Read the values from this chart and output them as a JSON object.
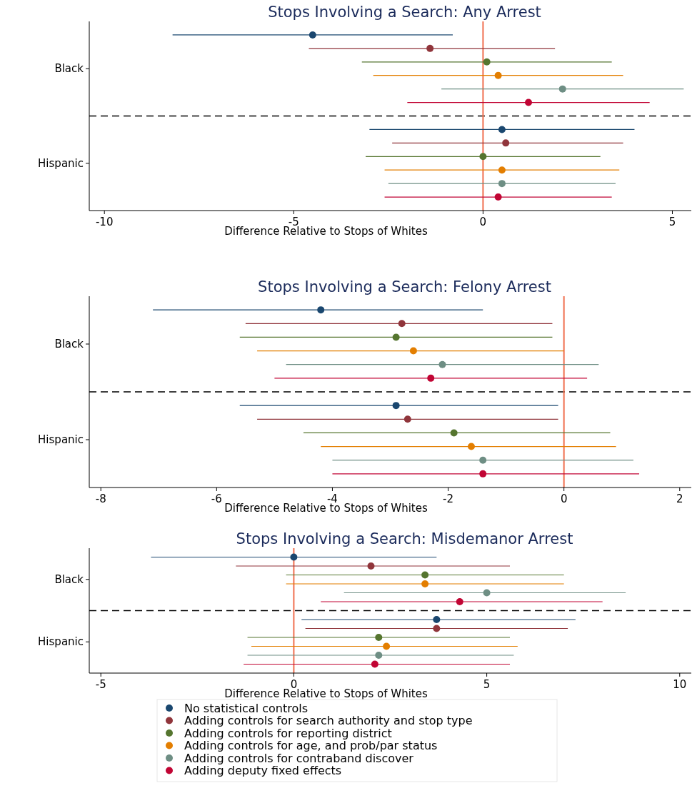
{
  "chart_data": [
    {
      "type": "scatter",
      "orientation": "horizontal",
      "title": "Stops Involving a Search: Any Arrest",
      "xlabel": "Difference Relative to Stops of Whites",
      "categories": [
        "Black",
        "Hispanic"
      ],
      "xlim": [
        -10.4,
        5.5
      ],
      "xticks": [
        -10,
        -5,
        0,
        5
      ],
      "marker": "circle",
      "ref_lines": [
        {
          "axis": "x",
          "value": 0,
          "color": "#f07050"
        }
      ],
      "series": [
        {
          "color": "#1a476f",
          "values": [
            -4.5,
            0.5
          ],
          "errors": [
            [
              -8.2,
              -0.8
            ],
            [
              -3.0,
              4.0
            ]
          ]
        },
        {
          "color": "#90353b",
          "values": [
            -1.4,
            0.6
          ],
          "errors": [
            [
              -4.6,
              1.9
            ],
            [
              -2.4,
              3.7
            ]
          ]
        },
        {
          "color": "#55752f",
          "values": [
            0.1,
            0.0
          ],
          "errors": [
            [
              -3.2,
              3.4
            ],
            [
              -3.1,
              3.1
            ]
          ]
        },
        {
          "color": "#e37e00",
          "values": [
            0.4,
            0.5
          ],
          "errors": [
            [
              -2.9,
              3.7
            ],
            [
              -2.6,
              3.6
            ]
          ]
        },
        {
          "color": "#6e8e84",
          "values": [
            2.1,
            0.5
          ],
          "errors": [
            [
              -1.1,
              5.3
            ],
            [
              -2.5,
              3.5
            ]
          ]
        },
        {
          "color": "#c10534",
          "values": [
            1.2,
            0.4
          ],
          "errors": [
            [
              -2.0,
              4.4
            ],
            [
              -2.6,
              3.4
            ]
          ]
        }
      ]
    },
    {
      "type": "scatter",
      "orientation": "horizontal",
      "title": "Stops Involving a Search: Felony Arrest",
      "xlabel": "Difference Relative to Stops of Whites",
      "categories": [
        "Black",
        "Hispanic"
      ],
      "xlim": [
        -8.2,
        2.2
      ],
      "xticks": [
        -8,
        -6,
        -4,
        -2,
        0,
        2
      ],
      "marker": "circle",
      "ref_lines": [
        {
          "axis": "x",
          "value": 0,
          "color": "#f07050"
        }
      ],
      "series": [
        {
          "color": "#1a476f",
          "values": [
            -4.2,
            -2.9
          ],
          "errors": [
            [
              -7.1,
              -1.4
            ],
            [
              -5.6,
              -0.1
            ]
          ]
        },
        {
          "color": "#90353b",
          "values": [
            -2.8,
            -2.7
          ],
          "errors": [
            [
              -5.5,
              -0.2
            ],
            [
              -5.3,
              -0.1
            ]
          ]
        },
        {
          "color": "#55752f",
          "values": [
            -2.9,
            -1.9
          ],
          "errors": [
            [
              -5.6,
              -0.2
            ],
            [
              -4.5,
              0.8
            ]
          ]
        },
        {
          "color": "#e37e00",
          "values": [
            -2.6,
            -1.6
          ],
          "errors": [
            [
              -5.3,
              0.0
            ],
            [
              -4.2,
              0.9
            ]
          ]
        },
        {
          "color": "#6e8e84",
          "values": [
            -2.1,
            -1.4
          ],
          "errors": [
            [
              -4.8,
              0.6
            ],
            [
              -4.0,
              1.2
            ]
          ]
        },
        {
          "color": "#c10534",
          "values": [
            -2.3,
            -1.4
          ],
          "errors": [
            [
              -5.0,
              0.4
            ],
            [
              -4.0,
              1.3
            ]
          ]
        }
      ]
    },
    {
      "type": "scatter",
      "orientation": "horizontal",
      "title": "Stops Involving a Search: Misdemanor Arrest",
      "xlabel": "Difference Relative to Stops of Whites",
      "categories": [
        "Black",
        "Hispanic"
      ],
      "xlim": [
        -5.3,
        10.3
      ],
      "xticks": [
        -5,
        0,
        5,
        10
      ],
      "marker": "circle",
      "legend": "bottom",
      "ref_lines": [
        {
          "axis": "x",
          "value": 0,
          "color": "#f07050"
        }
      ],
      "series": [
        {
          "name": "No statistical controls",
          "color": "#1a476f",
          "values": [
            0.0,
            3.7
          ],
          "errors": [
            [
              -3.7,
              3.7
            ],
            [
              0.2,
              7.3
            ]
          ]
        },
        {
          "name": "Adding controls for search authority and stop type",
          "color": "#90353b",
          "values": [
            2.0,
            3.7
          ],
          "errors": [
            [
              -1.5,
              5.6
            ],
            [
              0.3,
              7.1
            ]
          ]
        },
        {
          "name": "Adding controls for reporting district",
          "color": "#55752f",
          "values": [
            3.4,
            2.2
          ],
          "errors": [
            [
              -0.2,
              7.0
            ],
            [
              -1.2,
              5.6
            ]
          ]
        },
        {
          "name": "Adding controls for age, and prob/par status",
          "color": "#e37e00",
          "values": [
            3.4,
            2.4
          ],
          "errors": [
            [
              -0.2,
              7.0
            ],
            [
              -1.1,
              5.8
            ]
          ]
        },
        {
          "name": "Adding controls for contraband discover",
          "color": "#6e8e84",
          "values": [
            5.0,
            2.2
          ],
          "errors": [
            [
              1.3,
              8.6
            ],
            [
              -1.2,
              5.7
            ]
          ]
        },
        {
          "name": "Adding deputy fixed effects",
          "color": "#c10534",
          "values": [
            4.3,
            2.1
          ],
          "errors": [
            [
              0.7,
              8.0
            ],
            [
              -1.3,
              5.6
            ]
          ]
        }
      ]
    }
  ]
}
